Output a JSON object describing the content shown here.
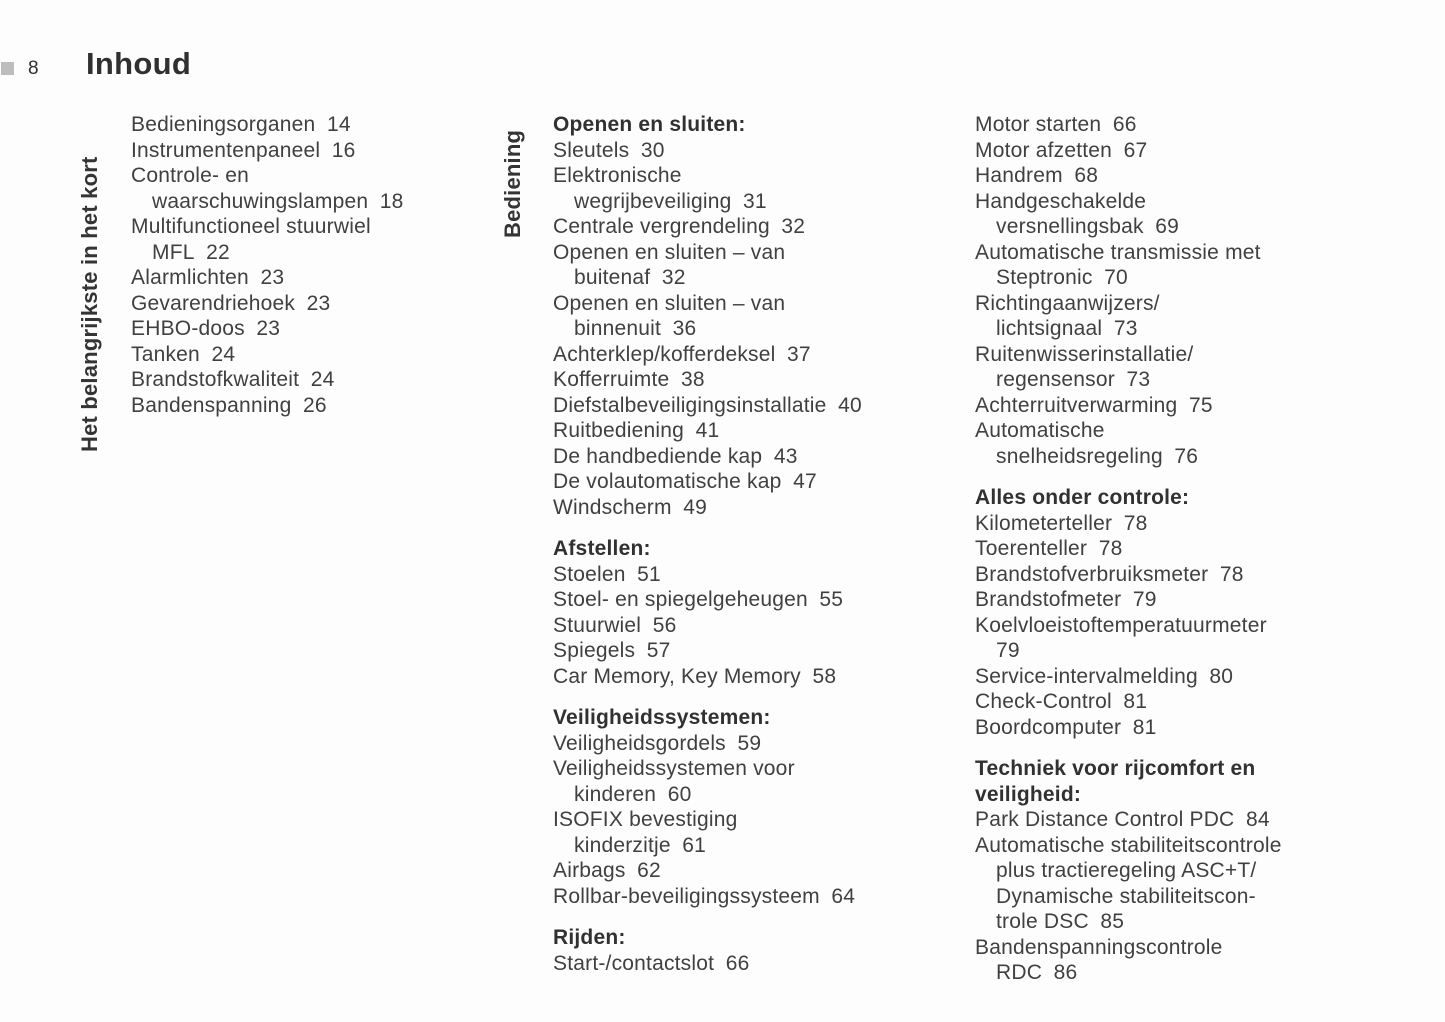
{
  "page": {
    "number": "8",
    "title": "Inhoud"
  },
  "colors": {
    "background": "#fdfdfd",
    "body_text": "#404040",
    "bold_text": "#313131",
    "corner_marker": "#bdbdbd"
  },
  "columns": [
    {
      "vertical_label": "Het belangrijkste in het kort",
      "blocks": [
        {
          "lines": [
            {
              "t": "Bedieningsorganen",
              "p": "14"
            },
            {
              "t": "Instrumentenpaneel",
              "p": "16"
            },
            {
              "t": "Controle- en"
            },
            {
              "t": "waarschuwingslampen",
              "p": "18",
              "i": true
            },
            {
              "t": "Multifunctioneel stuurwiel"
            },
            {
              "t": "MFL",
              "p": "22",
              "i": true
            },
            {
              "t": "Alarmlichten",
              "p": "23"
            },
            {
              "t": "Gevarendriehoek",
              "p": "23"
            },
            {
              "t": "EHBO-doos",
              "p": "23"
            },
            {
              "t": "Tanken",
              "p": "24"
            },
            {
              "t": "Brandstofkwaliteit",
              "p": "24"
            },
            {
              "t": "Bandenspanning",
              "p": "26"
            }
          ]
        }
      ]
    },
    {
      "vertical_label": "Bediening",
      "blocks": [
        {
          "lines": [
            {
              "t": "Openen en sluiten:",
              "b": true
            },
            {
              "t": "Sleutels",
              "p": "30"
            },
            {
              "t": "Elektronische"
            },
            {
              "t": "wegrijbeveiliging",
              "p": "31",
              "i": true
            },
            {
              "t": "Centrale vergrendeling",
              "p": "32"
            },
            {
              "t": "Openen en sluiten – van"
            },
            {
              "t": "buitenaf",
              "p": "32",
              "i": true
            },
            {
              "t": "Openen en sluiten – van"
            },
            {
              "t": "binnenuit",
              "p": "36",
              "i": true
            },
            {
              "t": "Achterklep/kofferdeksel",
              "p": "37"
            },
            {
              "t": "Kofferruimte",
              "p": "38"
            },
            {
              "t": "Diefstalbeveiligingsinstallatie",
              "p": "40"
            },
            {
              "t": "Ruitbediening",
              "p": "41"
            },
            {
              "t": "De handbediende kap",
              "p": "43"
            },
            {
              "t": "De volautomatische kap",
              "p": "47"
            },
            {
              "t": "Windscherm",
              "p": "49"
            }
          ]
        },
        {
          "lines": [
            {
              "t": "Afstellen:",
              "b": true
            },
            {
              "t": "Stoelen",
              "p": "51"
            },
            {
              "t": "Stoel- en spiegelgeheugen",
              "p": "55"
            },
            {
              "t": "Stuurwiel",
              "p": "56"
            },
            {
              "t": "Spiegels",
              "p": "57"
            },
            {
              "t": "Car Memory, Key Memory",
              "p": "58"
            }
          ]
        },
        {
          "lines": [
            {
              "t": "Veiligheidssystemen:",
              "b": true
            },
            {
              "t": "Veiligheidsgordels",
              "p": "59"
            },
            {
              "t": "Veiligheidssystemen voor"
            },
            {
              "t": "kinderen",
              "p": "60",
              "i": true
            },
            {
              "t": "ISOFIX bevestiging"
            },
            {
              "t": "kinderzitje",
              "p": "61",
              "i": true
            },
            {
              "t": "Airbags",
              "p": "62"
            },
            {
              "t": "Rollbar-beveiligingssysteem",
              "p": "64"
            }
          ]
        },
        {
          "lines": [
            {
              "t": "Rijden:",
              "b": true
            },
            {
              "t": "Start-/contactslot",
              "p": "66"
            }
          ]
        }
      ]
    },
    {
      "vertical_label": null,
      "blocks": [
        {
          "lines": [
            {
              "t": "Motor starten",
              "p": "66"
            },
            {
              "t": "Motor afzetten",
              "p": "67"
            },
            {
              "t": "Handrem",
              "p": "68"
            },
            {
              "t": "Handgeschakelde"
            },
            {
              "t": "versnellingsbak",
              "p": "69",
              "i": true
            },
            {
              "t": "Automatische transmissie met"
            },
            {
              "t": "Steptronic",
              "p": "70",
              "i": true
            },
            {
              "t": "Richtingaanwijzers/"
            },
            {
              "t": "lichtsignaal",
              "p": "73",
              "i": true
            },
            {
              "t": "Ruitenwisserinstallatie/"
            },
            {
              "t": "regensensor",
              "p": "73",
              "i": true
            },
            {
              "t": "Achterruitverwarming",
              "p": "75"
            },
            {
              "t": "Automatische"
            },
            {
              "t": "snelheidsregeling",
              "p": "76",
              "i": true
            }
          ]
        },
        {
          "lines": [
            {
              "t": "Alles onder controle:",
              "b": true
            },
            {
              "t": "Kilometerteller",
              "p": "78"
            },
            {
              "t": "Toerenteller",
              "p": "78"
            },
            {
              "t": "Brandstofverbruiksmeter",
              "p": "78"
            },
            {
              "t": "Brandstofmeter",
              "p": "79"
            },
            {
              "t": "Koelvloeistoftemperatuurmeter"
            },
            {
              "t": "79",
              "i": true
            },
            {
              "t": "Service-intervalmelding",
              "p": "80"
            },
            {
              "t": "Check-Control",
              "p": "81"
            },
            {
              "t": "Boordcomputer",
              "p": "81"
            }
          ]
        },
        {
          "lines": [
            {
              "t": "Techniek voor rijcomfort en",
              "b": true
            },
            {
              "t": "veiligheid:",
              "b": true
            },
            {
              "t": "Park Distance Control PDC",
              "p": "84"
            },
            {
              "t": "Automatische stabiliteitscontrole"
            },
            {
              "t": "plus tractieregeling ASC+T/",
              "i": true
            },
            {
              "t": "Dynamische stabiliteitscon-",
              "i": true
            },
            {
              "t": "trole DSC",
              "p": "85",
              "i": true
            },
            {
              "t": "Bandenspanningscontrole"
            },
            {
              "t": "RDC",
              "p": "86",
              "i": true
            }
          ]
        }
      ]
    }
  ]
}
